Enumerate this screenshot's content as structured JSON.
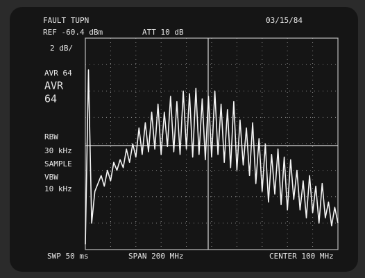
{
  "screen": {
    "mode": "FAULT TUPN",
    "date": "03/15/84",
    "reference": "REF -60.4 dBm",
    "attenuation": "ATT 10 dB",
    "scale": "2 dB/",
    "average_header": "AVR 64",
    "average_label": "AVR",
    "average_count": "64",
    "rbw_label": "RBW",
    "rbw_value": "30 kHz",
    "detector": "SAMPLE",
    "vbw_label": "VBW",
    "vbw_value": "10 kHz",
    "sweep": "SWP 50 ms",
    "span": "SPAN 200 MHz",
    "center": "CENTER 100 MHz"
  },
  "trace": {
    "values": [
      0.2,
      6.8,
      1.0,
      2.2,
      2.5,
      2.8,
      2.4,
      3.0,
      2.6,
      3.3,
      3.0,
      3.4,
      3.1,
      3.8,
      3.3,
      4.0,
      3.5,
      4.6,
      3.6,
      4.8,
      3.7,
      5.2,
      3.8,
      5.5,
      3.6,
      5.2,
      3.9,
      5.8,
      3.7,
      5.6,
      3.6,
      6.0,
      3.8,
      5.9,
      3.5,
      6.1,
      3.6,
      5.7,
      3.4,
      5.8,
      3.5,
      6.0,
      3.6,
      5.5,
      3.3,
      5.3,
      3.1,
      5.6,
      3.0,
      4.9,
      3.2,
      4.6,
      2.8,
      4.8,
      2.5,
      4.2,
      2.2,
      4.0,
      1.8,
      3.6,
      2.1,
      3.8,
      1.7,
      3.5,
      1.5,
      3.4,
      1.9,
      3.0,
      1.5,
      2.6,
      1.2,
      2.8,
      1.4,
      2.4,
      1.0,
      2.5,
      1.2,
      1.8,
      0.9,
      1.6,
      1.0
    ]
  }
}
